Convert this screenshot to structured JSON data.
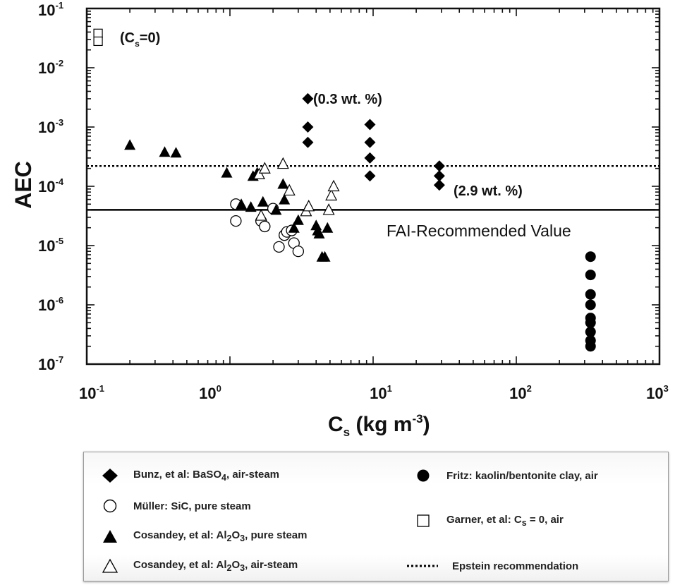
{
  "chart_data": {
    "type": "scatter",
    "xscale": "log",
    "yscale": "log",
    "xlim": [
      0.1,
      1000
    ],
    "ylim": [
      1e-07,
      0.1
    ],
    "grid": false,
    "xlabel": "C_s (kg m^-3)",
    "xlabel_parts": {
      "main": "C",
      "sub": "s",
      "unit": " (kg m",
      "sup": "-3",
      "close": ")"
    },
    "ylabel": "AEC",
    "x_ticks": [
      {
        "base": "10",
        "exp": "-1"
      },
      {
        "base": "10",
        "exp": "0"
      },
      {
        "base": "10",
        "exp": "1"
      },
      {
        "base": "10",
        "exp": "2"
      },
      {
        "base": "10",
        "exp": "3"
      }
    ],
    "y_ticks": [
      {
        "base": "10",
        "exp": "-7"
      },
      {
        "base": "10",
        "exp": "-6"
      },
      {
        "base": "10",
        "exp": "-5"
      },
      {
        "base": "10",
        "exp": "-4"
      },
      {
        "base": "10",
        "exp": "-3"
      },
      {
        "base": "10",
        "exp": "-2"
      },
      {
        "base": "10",
        "exp": "-1"
      }
    ],
    "reference_lines": [
      {
        "name": "Epstein recommendation",
        "y": 0.00022,
        "style": "dotted"
      },
      {
        "name": "FAI-Recommended Value",
        "y": 4e-05,
        "style": "solid"
      }
    ],
    "annotations": {
      "garner": "(C_s=0)",
      "bunz_low": "(0.3 wt. %)",
      "bunz_high": "(2.9 wt. %)",
      "fai": "FAI-Recommended Value"
    },
    "series": [
      {
        "name": "Bunz, et al: BaSO4, air-steam",
        "marker": "diamond",
        "points": [
          [
            3.5,
            0.003
          ],
          [
            3.5,
            0.001
          ],
          [
            3.5,
            0.00055
          ],
          [
            9.5,
            0.0011
          ],
          [
            9.5,
            0.00055
          ],
          [
            9.5,
            0.0003
          ],
          [
            9.5,
            0.00015
          ],
          [
            29,
            0.00022
          ],
          [
            29,
            0.00015
          ],
          [
            29,
            0.000105
          ]
        ]
      },
      {
        "name": "Müller: SiC, pure steam",
        "marker": "open-circle",
        "points": [
          [
            1.1,
            5e-05
          ],
          [
            1.1,
            2.6e-05
          ],
          [
            1.65,
            2.6e-05
          ],
          [
            1.75,
            2.1e-05
          ],
          [
            2.0,
            4.2e-05
          ],
          [
            2.2,
            9.5e-06
          ],
          [
            2.4,
            1.5e-05
          ],
          [
            2.5,
            1.7e-05
          ],
          [
            2.7,
            1.8e-05
          ],
          [
            2.8,
            1.1e-05
          ],
          [
            3.0,
            8e-06
          ]
        ]
      },
      {
        "name": "Cosandey, et al: Al2O3, pure steam",
        "marker": "filled-triangle",
        "points": [
          [
            0.2,
            0.0005
          ],
          [
            0.35,
            0.00038
          ],
          [
            0.42,
            0.00037
          ],
          [
            0.95,
            0.00017
          ],
          [
            1.2,
            5e-05
          ],
          [
            1.4,
            4.5e-05
          ],
          [
            1.45,
            0.00015
          ],
          [
            1.55,
            0.00017
          ],
          [
            1.7,
            5.5e-05
          ],
          [
            2.1,
            4e-05
          ],
          [
            2.35,
            0.00011
          ],
          [
            2.4,
            6e-05
          ],
          [
            2.8,
            2e-05
          ],
          [
            3.0,
            2.7e-05
          ],
          [
            4.0,
            2.2e-05
          ],
          [
            4.1,
            1.8e-05
          ],
          [
            4.2,
            1.6e-05
          ],
          [
            4.4,
            6.5e-06
          ],
          [
            4.6,
            6.5e-06
          ],
          [
            4.8,
            2e-05
          ]
        ]
      },
      {
        "name": "Cosandey, et al: Al2O3, air-steam",
        "marker": "open-triangle",
        "points": [
          [
            1.6,
            0.00016
          ],
          [
            1.75,
            0.0002
          ],
          [
            1.65,
            3.2e-05
          ],
          [
            2.35,
            0.00024
          ],
          [
            2.6,
            8.5e-05
          ],
          [
            3.4,
            3.8e-05
          ],
          [
            3.55,
            4.6e-05
          ],
          [
            4.9,
            4e-05
          ],
          [
            5.1,
            7e-05
          ],
          [
            5.3,
            0.0001
          ]
        ]
      },
      {
        "name": "Fritz: kaolin/bentonite clay, air",
        "marker": "filled-circle",
        "points": [
          [
            330,
            6.5e-06
          ],
          [
            330,
            3.2e-06
          ],
          [
            330,
            1.5e-06
          ],
          [
            330,
            1e-06
          ],
          [
            330,
            6e-07
          ],
          [
            330,
            5e-07
          ],
          [
            330,
            3.5e-07
          ],
          [
            330,
            2.5e-07
          ],
          [
            330,
            2e-07
          ]
        ]
      },
      {
        "name": "Garner, et al: C_s = 0, air",
        "marker": "open-square",
        "points": [
          [
            0.12,
            0.038
          ],
          [
            0.12,
            0.028
          ]
        ]
      }
    ]
  },
  "legend": {
    "bunz": {
      "pre": "Bunz, et al: BaSO",
      "sub": "4",
      "post": ", air-steam"
    },
    "muller": {
      "text": "Müller:  SiC, pure steam"
    },
    "cos_pure": {
      "pre": "Cosandey, et al:  Al",
      "sub1": "2",
      "mid": "O",
      "sub2": "3",
      "post": ", pure steam"
    },
    "cos_air": {
      "pre": "Cosandey, et al:  Al",
      "sub1": "2",
      "mid": "O",
      "sub2": "3",
      "post": ", air-steam"
    },
    "fritz": {
      "text": "Fritz:  kaolin/bentonite clay, air"
    },
    "garner": {
      "pre": "Garner, et al:  C",
      "sub": "s",
      "post": " = 0, air"
    },
    "epstein": {
      "text": "Epstein recommendation"
    }
  }
}
